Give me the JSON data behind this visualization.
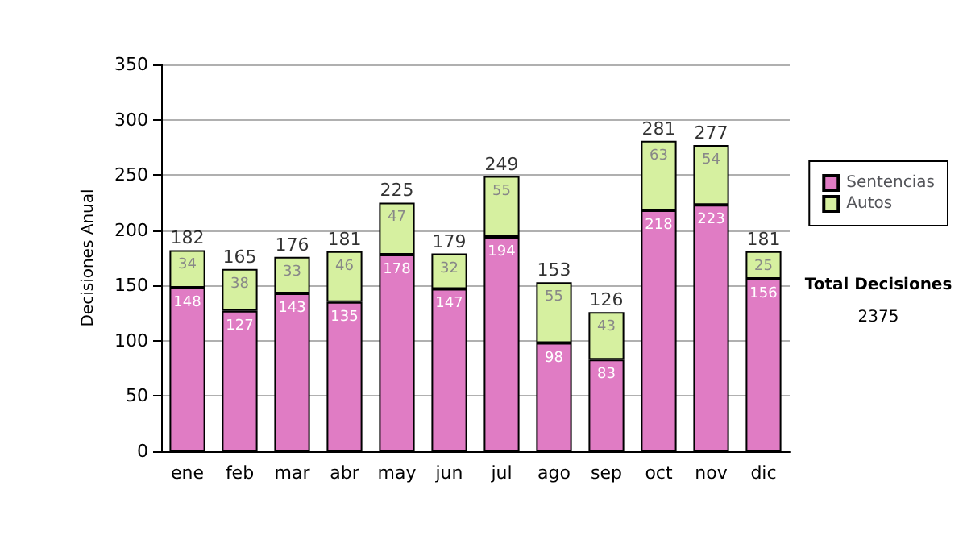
{
  "chart_data": {
    "type": "bar",
    "stacked": true,
    "ylabel": "Decisiones Anual",
    "categories": [
      "ene",
      "feb",
      "mar",
      "abr",
      "may",
      "jun",
      "jul",
      "ago",
      "sep",
      "oct",
      "nov",
      "dic"
    ],
    "series": [
      {
        "name": "Sentencias",
        "color": "#e07cc4",
        "values": [
          148,
          127,
          143,
          135,
          178,
          147,
          194,
          98,
          83,
          218,
          223,
          156
        ]
      },
      {
        "name": "Autos",
        "color": "#d6f0a0",
        "values": [
          34,
          38,
          33,
          46,
          47,
          32,
          55,
          55,
          43,
          63,
          54,
          25
        ]
      }
    ],
    "totals": [
      "182",
      "165",
      "176",
      "181",
      "225",
      "179",
      "249",
      "153",
      "126",
      "281",
      "277",
      "181"
    ],
    "data_labels": true,
    "ylim": [
      0,
      350
    ],
    "yticks": [
      0,
      50,
      100,
      150,
      200,
      250,
      300,
      350
    ],
    "grid": "y",
    "legend": "right",
    "annotations": [
      "Total Decisiones",
      "2375"
    ]
  }
}
